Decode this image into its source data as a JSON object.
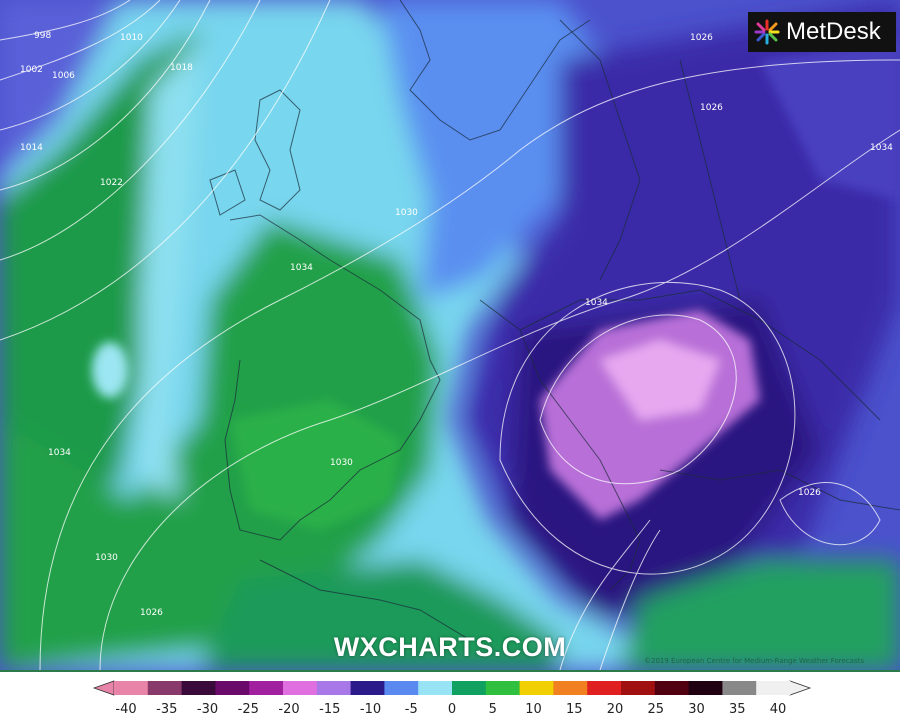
{
  "brand": {
    "logo_text": "MetDesk",
    "watermark": "WXCHARTS.COM",
    "attribution": "©2019 European Centre for Medium-Range Weather Forecasts"
  },
  "isobar_labels": [
    "998",
    "1002",
    "1006",
    "1010",
    "1014",
    "1018",
    "1022",
    "1026",
    "1030",
    "1034",
    "1026",
    "1034",
    "1030",
    "1034",
    "1026",
    "1030",
    "1026",
    "1034"
  ],
  "colorbar": {
    "ticks": [
      "-40",
      "-35",
      "-30",
      "-25",
      "-20",
      "-15",
      "-10",
      "-5",
      "0",
      "5",
      "10",
      "15",
      "20",
      "25",
      "30",
      "35",
      "40"
    ],
    "colors": [
      "#e884a8",
      "#8a3a6a",
      "#3a0a3a",
      "#6a0a6a",
      "#a020a0",
      "#e070e0",
      "#a878e8",
      "#2a1a8a",
      "#5a8af0",
      "#98e4f4",
      "#10a060",
      "#30c040",
      "#f0d000",
      "#f08020",
      "#e02020",
      "#a01010",
      "#500010",
      "#200010",
      "#888888",
      "#f0f0f0"
    ]
  },
  "colors": {
    "cold": "#c070d8",
    "mild": "#1f9a4a",
    "sea": "#6fd0e8",
    "background": "#4a4ac8"
  }
}
